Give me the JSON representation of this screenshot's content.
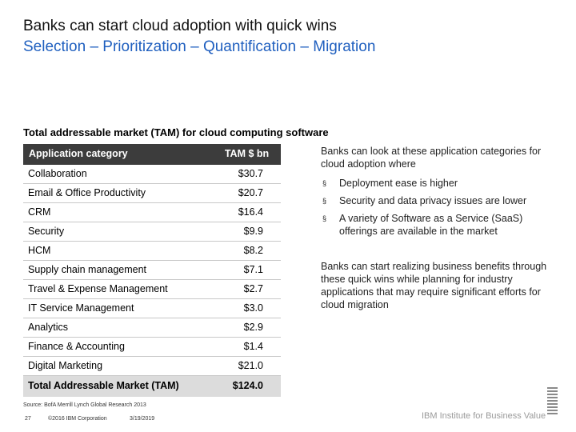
{
  "slide": {
    "title": "Banks can start cloud adoption with quick wins",
    "subtitle": "Selection – Prioritization – Quantification – Migration",
    "table_caption": "Total addressable market (TAM) for cloud computing software"
  },
  "table": {
    "header_category": "Application category",
    "header_value": "TAM $ bn",
    "rows": [
      {
        "category": "Collaboration",
        "value": "$30.7"
      },
      {
        "category": "Email & Office Productivity",
        "value": "$20.7"
      },
      {
        "category": "CRM",
        "value": "$16.4"
      },
      {
        "category": "Security",
        "value": "$9.9"
      },
      {
        "category": "HCM",
        "value": "$8.2"
      },
      {
        "category": "Supply chain management",
        "value": "$7.1"
      },
      {
        "category": "Travel & Expense Management",
        "value": "$2.7"
      },
      {
        "category": "IT Service Management",
        "value": "$3.0"
      },
      {
        "category": "Analytics",
        "value": "$2.9"
      },
      {
        "category": "Finance & Accounting",
        "value": "$1.4"
      },
      {
        "category": "Digital Marketing",
        "value": "$21.0"
      }
    ],
    "total_label": "Total Addressable Market (TAM)",
    "total_value": "$124.0"
  },
  "right": {
    "intro": "Banks can look at these application categories for cloud adoption where",
    "bullet_marker": "§",
    "bullets": [
      "Deployment ease is higher",
      "Security and data privacy issues are lower",
      "A variety of Software as a Service (SaaS) offerings are available in the market"
    ],
    "conclusion": "Banks can start realizing business benefits through these quick wins while planning for industry applications that may require significant efforts for cloud migration"
  },
  "footer": {
    "source": "Source: BofA Merrill Lynch Global Research 2013",
    "page": "27",
    "copyright": "©2016 IBM Corporation",
    "date": "3/19/2019",
    "brand": "IBM Institute for Business Value"
  }
}
